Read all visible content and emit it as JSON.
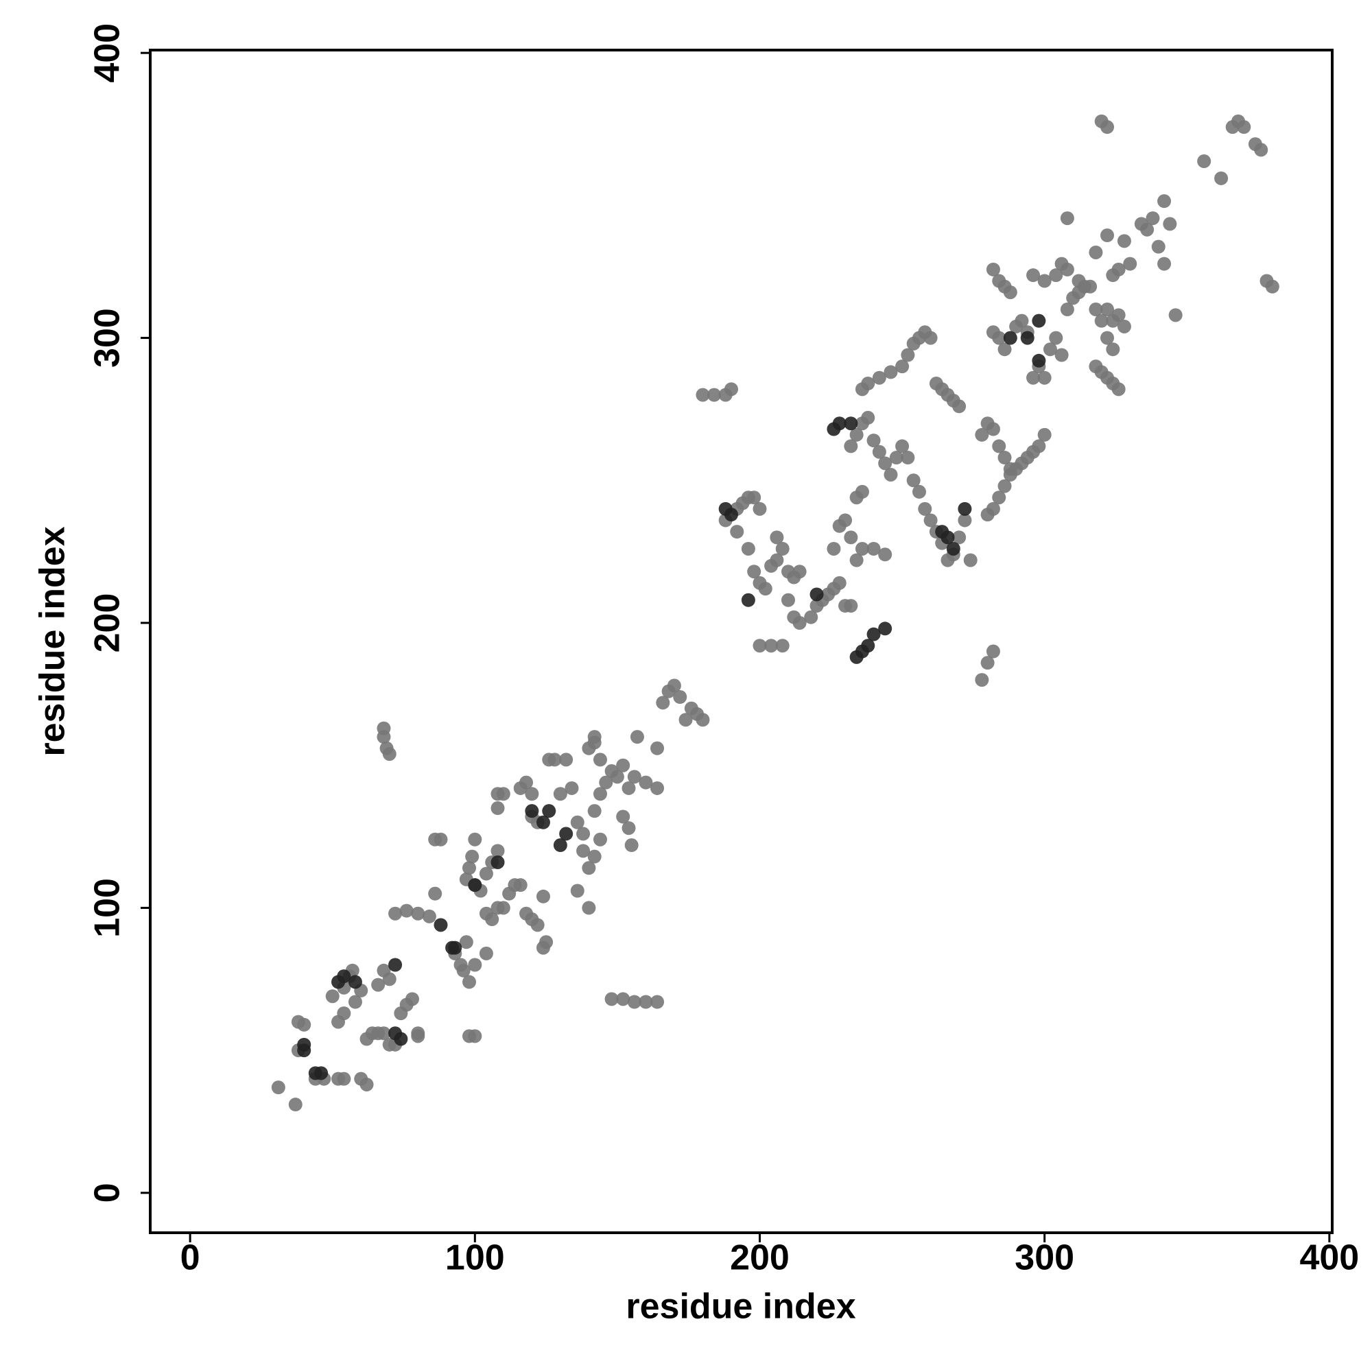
{
  "chart_data": {
    "type": "scatter",
    "xlabel": "residue index",
    "ylabel": "residue index",
    "xlim": [
      -14,
      401
    ],
    "ylim": [
      -14,
      401
    ],
    "xticks": [
      0,
      100,
      200,
      300,
      400
    ],
    "yticks": [
      0,
      100,
      200,
      300,
      400
    ],
    "series": [
      {
        "color": "#777777",
        "x": [
          31,
          37,
          38,
          40,
          38,
          44,
          47,
          52,
          54,
          50,
          52,
          54,
          54,
          56,
          57,
          58,
          60,
          60,
          62,
          62,
          64,
          66,
          68,
          66,
          68,
          70,
          70,
          72,
          74,
          76,
          78,
          80,
          80,
          72,
          76,
          80,
          84,
          86,
          86,
          88,
          93,
          95,
          96,
          97,
          98,
          100,
          97,
          98,
          99,
          100,
          100,
          102,
          104,
          106,
          108,
          110,
          112,
          114,
          116,
          118,
          120,
          122,
          124,
          125,
          124,
          104,
          106,
          108,
          100,
          98,
          68,
          68,
          69,
          70,
          110,
          108,
          116,
          120,
          118,
          120,
          122,
          126,
          128,
          132,
          130,
          134,
          136,
          138,
          138,
          140,
          142,
          144,
          142,
          144,
          146,
          140,
          142,
          144,
          148,
          150,
          152,
          154,
          156,
          160,
          164,
          152,
          154,
          155,
          157,
          164,
          142,
          140,
          136,
          108,
          104,
          148,
          152,
          156,
          160,
          164,
          166,
          168,
          170,
          172,
          174,
          176,
          178,
          180,
          180,
          184,
          188,
          190,
          188,
          192,
          194,
          196,
          198,
          200,
          192,
          196,
          198,
          200,
          202,
          204,
          206,
          206,
          208,
          210,
          212,
          214,
          200,
          204,
          208,
          210,
          212,
          214,
          218,
          220,
          222,
          224,
          226,
          228,
          230,
          232,
          226,
          228,
          230,
          232,
          234,
          236,
          240,
          244,
          234,
          236,
          232,
          234,
          236,
          238,
          240,
          242,
          244,
          246,
          248,
          250,
          252,
          254,
          256,
          258,
          260,
          262,
          264,
          266,
          268,
          236,
          238,
          242,
          246,
          250,
          252,
          254,
          256,
          258,
          260,
          262,
          264,
          266,
          268,
          270,
          272,
          270,
          274,
          280,
          282,
          284,
          286,
          288,
          290,
          292,
          294,
          296,
          298,
          300,
          278,
          280,
          282,
          284,
          286,
          288,
          278,
          280,
          282,
          282,
          284,
          286,
          290,
          292,
          294,
          296,
          298,
          300,
          302,
          304,
          306,
          308,
          310,
          312,
          314,
          304,
          306,
          308,
          296,
          300,
          282,
          284,
          286,
          288,
          322,
          324,
          326,
          328,
          318,
          320,
          322,
          324,
          326,
          322,
          324,
          316,
          318,
          320,
          324,
          326,
          328,
          330,
          334,
          336,
          338,
          342,
          340,
          344,
          346,
          342,
          356,
          362,
          366,
          368,
          370,
          374,
          376,
          378,
          380,
          320,
          322,
          308,
          312,
          318,
          322
        ],
        "values": [
          37,
          31,
          60,
          59,
          50,
          40,
          40,
          40,
          40,
          69,
          60,
          63,
          72,
          76,
          78,
          67,
          71,
          40,
          38,
          54,
          56,
          56,
          56,
          73,
          78,
          75,
          52,
          52,
          63,
          66,
          68,
          56,
          55,
          98,
          99,
          98,
          97,
          105,
          124,
          124,
          84,
          80,
          78,
          88,
          74,
          80,
          110,
          114,
          118,
          124,
          108,
          106,
          98,
          96,
          100,
          100,
          105,
          108,
          108,
          98,
          96,
          94,
          86,
          88,
          104,
          112,
          116,
          120,
          55,
          55,
          163,
          160,
          156,
          154,
          140,
          135,
          142,
          140,
          144,
          132,
          130,
          152,
          152,
          152,
          140,
          142,
          130,
          126,
          120,
          114,
          118,
          124,
          134,
          140,
          144,
          156,
          158,
          152,
          148,
          146,
          150,
          142,
          146,
          144,
          142,
          132,
          128,
          122,
          160,
          156,
          160,
          100,
          106,
          140,
          84,
          68,
          68,
          67,
          67,
          67,
          172,
          176,
          178,
          174,
          166,
          170,
          168,
          166,
          280,
          280,
          280,
          282,
          236,
          240,
          242,
          244,
          244,
          240,
          232,
          226,
          218,
          214,
          212,
          220,
          222,
          230,
          226,
          218,
          216,
          218,
          192,
          192,
          192,
          208,
          202,
          200,
          202,
          206,
          208,
          210,
          212,
          214,
          206,
          206,
          226,
          234,
          236,
          230,
          222,
          226,
          226,
          224,
          244,
          246,
          262,
          266,
          270,
          272,
          264,
          260,
          256,
          252,
          258,
          262,
          258,
          250,
          246,
          240,
          236,
          232,
          228,
          222,
          224,
          282,
          284,
          286,
          288,
          290,
          294,
          298,
          300,
          302,
          300,
          284,
          282,
          280,
          278,
          276,
          236,
          230,
          222,
          238,
          240,
          244,
          248,
          252,
          254,
          256,
          258,
          260,
          262,
          266,
          266,
          270,
          268,
          262,
          258,
          254,
          180,
          186,
          190,
          302,
          300,
          296,
          304,
          306,
          302,
          286,
          290,
          286,
          296,
          300,
          294,
          310,
          314,
          316,
          318,
          322,
          326,
          324,
          322,
          320,
          324,
          320,
          318,
          316,
          310,
          306,
          308,
          304,
          290,
          288,
          286,
          284,
          282,
          300,
          296,
          318,
          310,
          306,
          322,
          324,
          334,
          326,
          340,
          338,
          342,
          348,
          332,
          340,
          308,
          326,
          362,
          356,
          374,
          376,
          374,
          368,
          366,
          320,
          318,
          376,
          374,
          342,
          320,
          330,
          336
        ]
      },
      {
        "color": "#222222",
        "x": [
          40,
          40,
          44,
          46,
          52,
          54,
          58,
          72,
          72,
          74,
          88,
          92,
          93,
          100,
          108,
          120,
          124,
          126,
          130,
          132,
          188,
          190,
          234,
          236,
          238,
          240,
          244,
          226,
          228,
          232,
          264,
          266,
          268,
          288,
          298,
          298,
          294,
          272,
          196,
          220
        ],
        "values": [
          50,
          52,
          42,
          42,
          74,
          76,
          74,
          56,
          80,
          54,
          94,
          86,
          86,
          108,
          116,
          134,
          130,
          134,
          122,
          126,
          240,
          238,
          188,
          190,
          192,
          196,
          198,
          268,
          270,
          270,
          232,
          230,
          226,
          300,
          292,
          306,
          300,
          240,
          208,
          210
        ]
      }
    ]
  }
}
